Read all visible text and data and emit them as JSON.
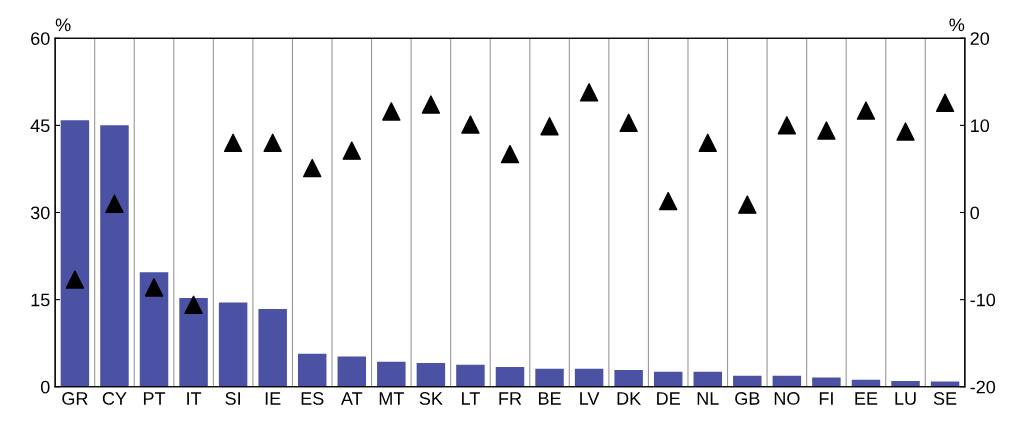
{
  "chart_data": {
    "type": "bar",
    "categories": [
      "GR",
      "CY",
      "PT",
      "IT",
      "SI",
      "IE",
      "ES",
      "AT",
      "MT",
      "SK",
      "LT",
      "FR",
      "BE",
      "LV",
      "DK",
      "DE",
      "NL",
      "GB",
      "NO",
      "FI",
      "EE",
      "LU",
      "SE"
    ],
    "series": [
      {
        "color": "#4b51a3",
        "values": [
          45.9,
          45.0,
          19.7,
          15.3,
          14.5,
          13.4,
          5.7,
          5.2,
          4.3,
          4.1,
          3.8,
          3.4,
          3.1,
          3.1,
          2.9,
          2.6,
          2.6,
          1.9,
          1.9,
          1.6,
          1.2,
          1.0,
          0.9
        ]
      },
      {
        "type": "scatter",
        "axis": "y2",
        "color": "#000000",
        "marker": "triangle",
        "values": [
          -7.7,
          1.0,
          -8.6,
          -10.6,
          8.0,
          8.0,
          5.1,
          7.1,
          11.6,
          12.4,
          10.1,
          6.7,
          9.9,
          13.8,
          10.3,
          1.3,
          8.0,
          0.9,
          10.0,
          9.4,
          11.7,
          9.3,
          12.6
        ]
      }
    ],
    "ylabel": "%",
    "y2label": "%",
    "ylim": [
      0,
      60
    ],
    "yticks": [
      0,
      15,
      30,
      45,
      60
    ],
    "y2lim": [
      -20,
      20
    ],
    "y2ticks": [
      -20,
      -10,
      0,
      10,
      20
    ],
    "grid": "x"
  }
}
